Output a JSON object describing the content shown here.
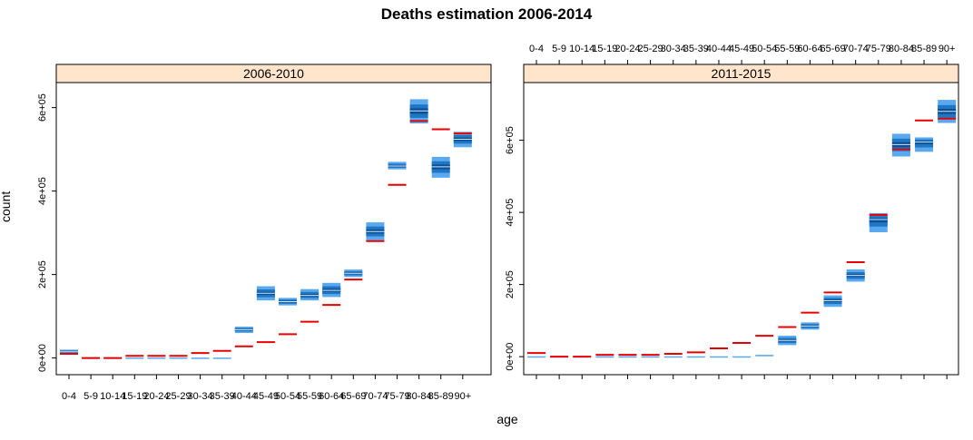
{
  "title": "Deaths estimation 2006-2014",
  "xlabel": "age",
  "ylabel": "count",
  "colors": {
    "strip": "#ffe5cc",
    "band_outer": "#5aa9ef",
    "band_mid": "#1f77c4",
    "band_inner": "#0a4e96",
    "median_line": "#cfe6fb",
    "observed": "#e60000"
  },
  "chart_data": [
    {
      "type": "box-intervals",
      "panel": "2006-2010",
      "ylim": [
        -40000,
        660000
      ],
      "yticks": [
        0,
        200000,
        400000,
        600000
      ],
      "ytick_labels": [
        "0e+00",
        "2e+05",
        "4e+05",
        "6e+05"
      ],
      "y_axis_side": "left",
      "x_tick_labels_side": "bottom",
      "categories": [
        "0-4",
        "5-9",
        "10-14",
        "15-19",
        "20-24",
        "25-29",
        "30-34",
        "35-39",
        "40-44",
        "45-49",
        "50-54",
        "55-59",
        "60-64",
        "65-69",
        "70-74",
        "75-79",
        "80-84",
        "85-89",
        "90+"
      ],
      "x_tick_labels": [
        "0-4",
        "5-9",
        "10-14",
        "15-19",
        "20-24",
        "25-29",
        "30-34",
        "35-39",
        "40-44",
        "45-49",
        "50-54",
        "55-59",
        "60-64",
        "65-69",
        "70-74",
        "75-79",
        "80-84",
        "85-89",
        "90+"
      ],
      "series": [
        {
          "name": "",
          "values": [
            15000,
            500,
            500,
            500,
            500,
            500,
            500,
            500,
            68000,
            155000,
            135000,
            150000,
            162000,
            203000,
            303000,
            460000,
            592000,
            458000,
            524000
          ],
          "lo95": [
            10000,
            0,
            0,
            0,
            0,
            0,
            0,
            0,
            60000,
            138000,
            126000,
            138000,
            146000,
            194000,
            282000,
            452000,
            562000,
            432000,
            505000
          ],
          "hi95": [
            20000,
            1000,
            1000,
            1000,
            1000,
            1000,
            1000,
            1000,
            75000,
            172000,
            144000,
            165000,
            180000,
            212000,
            325000,
            470000,
            620000,
            482000,
            542000
          ]
        },
        {
          "name": "",
          "values": [
            10000,
            0,
            0,
            5000,
            5000,
            5000,
            12000,
            17000,
            28000,
            38000,
            57000,
            87000,
            127000,
            188000,
            280000,
            415000,
            568000,
            548000,
            538000
          ]
        }
      ]
    },
    {
      "type": "box-intervals",
      "panel": "2011-2015",
      "ylim": [
        -50000,
        760000
      ],
      "yticks": [
        0,
        200000,
        400000,
        600000
      ],
      "ytick_labels": [
        "0e+00",
        "2e+05",
        "4e+05",
        "6e+05"
      ],
      "y_axis_side": "left",
      "x_tick_labels_side": "top",
      "categories": [
        "0-4",
        "5-9",
        "10-14",
        "15-19",
        "20-24",
        "25-29",
        "30-34",
        "35-39",
        "40-44",
        "45-49",
        "50-54",
        "55-59",
        "60-64",
        "65-69",
        "70-74",
        "75-79",
        "80-84",
        "85-89",
        "90+"
      ],
      "x_tick_labels": [
        "0-4",
        "5-9",
        "10-14",
        "15-19",
        "20-24",
        "25-29",
        "30-34",
        "35-39",
        "40-44",
        "45-49",
        "50-54",
        "55-59",
        "60-64",
        "65-69",
        "70-74",
        "75-79",
        "80-84",
        "85-89",
        "90+"
      ],
      "series": [
        {
          "name": "",
          "values": [
            500,
            500,
            500,
            500,
            500,
            500,
            500,
            500,
            500,
            500,
            3000,
            45000,
            85000,
            155000,
            225000,
            380000,
            588000,
            595000,
            680000
          ],
          "lo95": [
            0,
            0,
            0,
            0,
            0,
            0,
            0,
            0,
            0,
            0,
            1000,
            32000,
            75000,
            138000,
            208000,
            345000,
            555000,
            568000,
            648000
          ],
          "hi95": [
            1000,
            1000,
            1000,
            1000,
            1000,
            1000,
            1000,
            1000,
            1000,
            1000,
            5000,
            58000,
            95000,
            170000,
            242000,
            398000,
            618000,
            608000,
            712000
          ]
        },
        {
          "name": "",
          "values": [
            10000,
            0,
            0,
            5000,
            5000,
            5000,
            8000,
            12000,
            23000,
            38000,
            58000,
            82000,
            122000,
            178000,
            262000,
            393000,
            575000,
            655000,
            660000
          ]
        }
      ]
    }
  ]
}
